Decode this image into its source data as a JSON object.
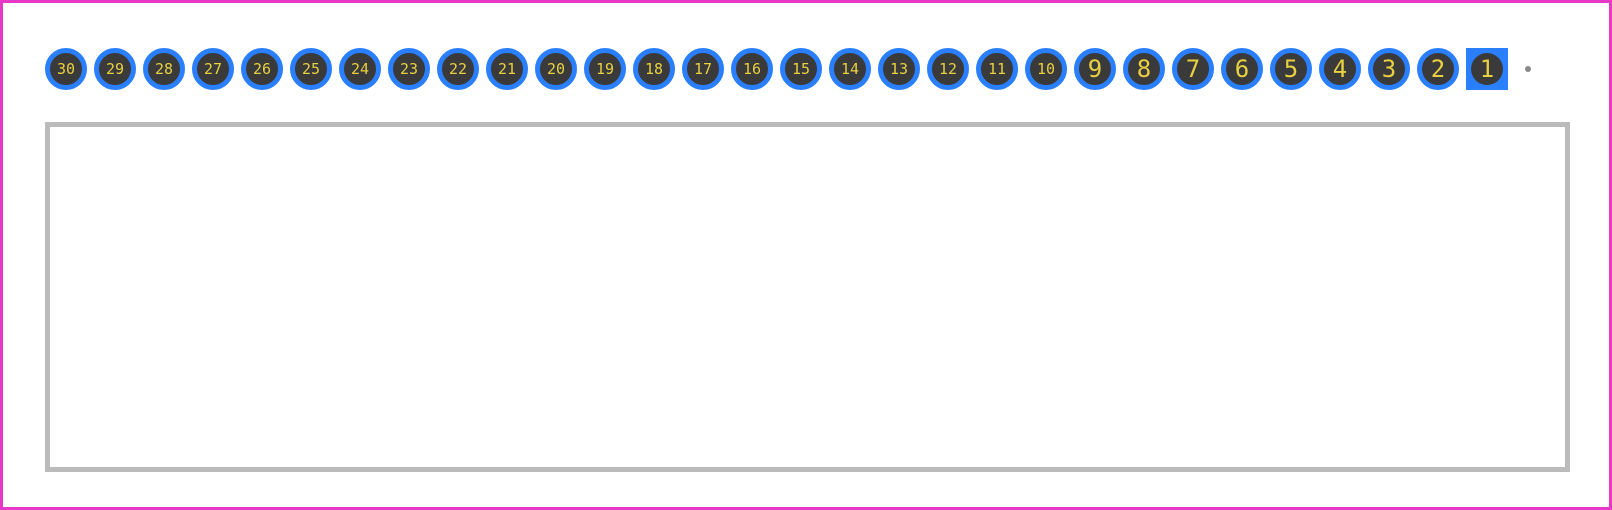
{
  "footprint": {
    "type": "pin-header",
    "pin_count": 30,
    "outer_border_color": "#e838c8",
    "outer_border_width": 3,
    "background_color": "#ffffff",
    "body_rect": {
      "border_color": "#bbbbbb",
      "border_width": 5,
      "fill": "transparent"
    },
    "pins": [
      {
        "label": "30",
        "shape": "circle",
        "ring_color": "#2a7fff",
        "fill_color": "#3a3a3a",
        "text_color": "#e8d040",
        "font_size": 15
      },
      {
        "label": "29",
        "shape": "circle",
        "ring_color": "#2a7fff",
        "fill_color": "#3a3a3a",
        "text_color": "#e8d040",
        "font_size": 15
      },
      {
        "label": "28",
        "shape": "circle",
        "ring_color": "#2a7fff",
        "fill_color": "#3a3a3a",
        "text_color": "#e8d040",
        "font_size": 15
      },
      {
        "label": "27",
        "shape": "circle",
        "ring_color": "#2a7fff",
        "fill_color": "#3a3a3a",
        "text_color": "#e8d040",
        "font_size": 15
      },
      {
        "label": "26",
        "shape": "circle",
        "ring_color": "#2a7fff",
        "fill_color": "#3a3a3a",
        "text_color": "#e8d040",
        "font_size": 15
      },
      {
        "label": "25",
        "shape": "circle",
        "ring_color": "#2a7fff",
        "fill_color": "#3a3a3a",
        "text_color": "#e8d040",
        "font_size": 15
      },
      {
        "label": "24",
        "shape": "circle",
        "ring_color": "#2a7fff",
        "fill_color": "#3a3a3a",
        "text_color": "#e8d040",
        "font_size": 15
      },
      {
        "label": "23",
        "shape": "circle",
        "ring_color": "#2a7fff",
        "fill_color": "#3a3a3a",
        "text_color": "#e8d040",
        "font_size": 15
      },
      {
        "label": "22",
        "shape": "circle",
        "ring_color": "#2a7fff",
        "fill_color": "#3a3a3a",
        "text_color": "#e8d040",
        "font_size": 15
      },
      {
        "label": "21",
        "shape": "circle",
        "ring_color": "#2a7fff",
        "fill_color": "#3a3a3a",
        "text_color": "#e8d040",
        "font_size": 15
      },
      {
        "label": "20",
        "shape": "circle",
        "ring_color": "#2a7fff",
        "fill_color": "#3a3a3a",
        "text_color": "#e8d040",
        "font_size": 15
      },
      {
        "label": "19",
        "shape": "circle",
        "ring_color": "#2a7fff",
        "fill_color": "#3a3a3a",
        "text_color": "#e8d040",
        "font_size": 15
      },
      {
        "label": "18",
        "shape": "circle",
        "ring_color": "#2a7fff",
        "fill_color": "#3a3a3a",
        "text_color": "#e8d040",
        "font_size": 15
      },
      {
        "label": "17",
        "shape": "circle",
        "ring_color": "#2a7fff",
        "fill_color": "#3a3a3a",
        "text_color": "#e8d040",
        "font_size": 15
      },
      {
        "label": "16",
        "shape": "circle",
        "ring_color": "#2a7fff",
        "fill_color": "#3a3a3a",
        "text_color": "#e8d040",
        "font_size": 15
      },
      {
        "label": "15",
        "shape": "circle",
        "ring_color": "#2a7fff",
        "fill_color": "#3a3a3a",
        "text_color": "#e8d040",
        "font_size": 15
      },
      {
        "label": "14",
        "shape": "circle",
        "ring_color": "#2a7fff",
        "fill_color": "#3a3a3a",
        "text_color": "#e8d040",
        "font_size": 15
      },
      {
        "label": "13",
        "shape": "circle",
        "ring_color": "#2a7fff",
        "fill_color": "#3a3a3a",
        "text_color": "#e8d040",
        "font_size": 15
      },
      {
        "label": "12",
        "shape": "circle",
        "ring_color": "#2a7fff",
        "fill_color": "#3a3a3a",
        "text_color": "#e8d040",
        "font_size": 15
      },
      {
        "label": "11",
        "shape": "circle",
        "ring_color": "#2a7fff",
        "fill_color": "#3a3a3a",
        "text_color": "#e8d040",
        "font_size": 15
      },
      {
        "label": "10",
        "shape": "circle",
        "ring_color": "#2a7fff",
        "fill_color": "#3a3a3a",
        "text_color": "#e8d040",
        "font_size": 15
      },
      {
        "label": "9",
        "shape": "circle",
        "ring_color": "#2a7fff",
        "fill_color": "#3a3a3a",
        "text_color": "#e8d040",
        "font_size": 24
      },
      {
        "label": "8",
        "shape": "circle",
        "ring_color": "#2a7fff",
        "fill_color": "#3a3a3a",
        "text_color": "#e8d040",
        "font_size": 24
      },
      {
        "label": "7",
        "shape": "circle",
        "ring_color": "#2a7fff",
        "fill_color": "#3a3a3a",
        "text_color": "#e8d040",
        "font_size": 24
      },
      {
        "label": "6",
        "shape": "circle",
        "ring_color": "#2a7fff",
        "fill_color": "#3a3a3a",
        "text_color": "#e8d040",
        "font_size": 24
      },
      {
        "label": "5",
        "shape": "circle",
        "ring_color": "#2a7fff",
        "fill_color": "#3a3a3a",
        "text_color": "#e8d040",
        "font_size": 24
      },
      {
        "label": "4",
        "shape": "circle",
        "ring_color": "#2a7fff",
        "fill_color": "#3a3a3a",
        "text_color": "#e8d040",
        "font_size": 24
      },
      {
        "label": "3",
        "shape": "circle",
        "ring_color": "#2a7fff",
        "fill_color": "#3a3a3a",
        "text_color": "#e8d040",
        "font_size": 24
      },
      {
        "label": "2",
        "shape": "circle",
        "ring_color": "#2a7fff",
        "fill_color": "#3a3a3a",
        "text_color": "#e8d040",
        "font_size": 24
      },
      {
        "label": "1",
        "shape": "square",
        "ring_color": "#2a7fff",
        "fill_color": "#3a3a3a",
        "text_color": "#e8d040",
        "font_size": 24
      }
    ],
    "marker_dot": {
      "color": "#888888",
      "size": 6
    }
  }
}
